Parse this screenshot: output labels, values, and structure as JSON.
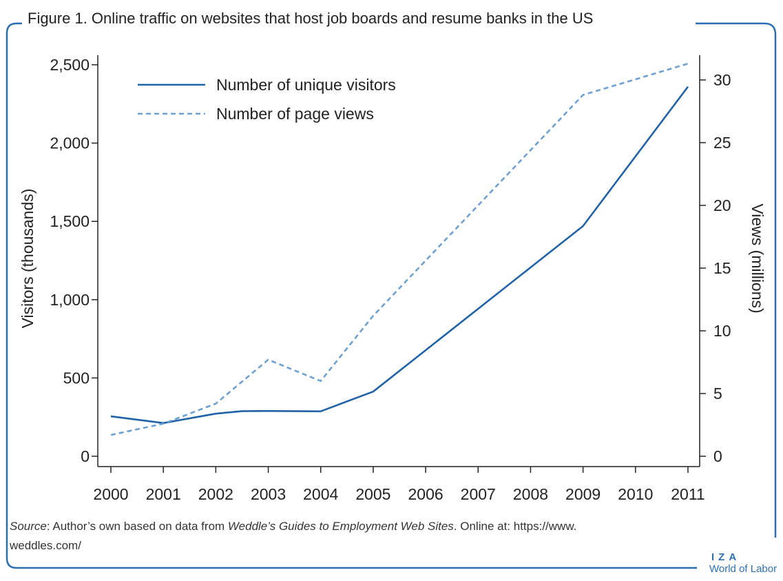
{
  "figure": {
    "title": "Figure 1. Online traffic on websites that host job boards and resume banks in the US",
    "source_label": "Source",
    "source_text_1": ": Author’s own based on data from ",
    "source_italic": "Weddle’s Guides to Employment Web Sites",
    "source_text_2": ". Online at: https://www.",
    "source_text_3": "weddles.com/",
    "logo_top": "IZA",
    "logo_bottom": "World of Labor"
  },
  "colors": {
    "frame": "#2b6fb3",
    "series_visitors": "#1f62a8",
    "series_views": "#6ea0d0",
    "axis": "#222222"
  },
  "chart_data": {
    "type": "line",
    "x": [
      2000,
      2001,
      2002,
      2003,
      2004,
      2005,
      2006,
      2007,
      2008,
      2009,
      2010,
      2011
    ],
    "series": [
      {
        "name": "Number of unique visitors",
        "axis": "left",
        "style": "solid",
        "x": [
          2000,
          2001,
          2002,
          2002.5,
          2003,
          2004,
          2005,
          2009,
          2011
        ],
        "values": [
          255,
          212,
          272,
          288,
          289,
          287,
          413,
          1470,
          2360
        ]
      },
      {
        "name": "Number of page views",
        "axis": "right",
        "style": "dashed",
        "x": [
          2000,
          2001,
          2002,
          2003,
          2004,
          2005,
          2009,
          2011
        ],
        "values": [
          1.7,
          2.6,
          4.2,
          7.7,
          6.0,
          11.2,
          28.8,
          31.3
        ]
      }
    ],
    "ylabel_left": "Visitors (thousands)",
    "ylabel_right": "Views (millions)",
    "ylim_left": [
      0,
      2500
    ],
    "yticks_left": [
      0,
      500,
      1000,
      1500,
      2000,
      2500
    ],
    "ytick_labels_left": [
      "0",
      "500",
      "1,000",
      "1,500",
      "2,000",
      "2,500"
    ],
    "ylim_right": [
      0,
      30
    ],
    "yticks_right": [
      0,
      5,
      10,
      15,
      20,
      25,
      30
    ],
    "ytick_labels_right": [
      "0",
      "5",
      "10",
      "15",
      "20",
      "25",
      "30"
    ],
    "xticks": [
      2000,
      2001,
      2002,
      2003,
      2004,
      2005,
      2006,
      2007,
      2008,
      2009,
      2010,
      2011
    ],
    "xtick_labels": [
      "2000",
      "2001",
      "2002",
      "2003",
      "2004",
      "2005",
      "2006",
      "2007",
      "2008",
      "2009",
      "2010",
      "2011"
    ],
    "legend_position": "top-left",
    "grid": false
  }
}
